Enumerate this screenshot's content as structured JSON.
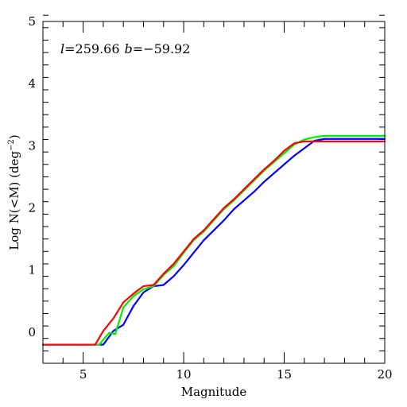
{
  "chart_data": {
    "type": "line",
    "title": "",
    "annotation": {
      "l_symbol": "l",
      "l_value": "=259.66",
      "b_symbol": "b",
      "b_value": "=−59.92"
    },
    "xlabel": "Magnitude",
    "ylabel_main": "Log N(<M) (deg",
    "ylabel_sup": "−2",
    "ylabel_close": ")",
    "xlim": [
      3,
      20
    ],
    "ylim": [
      -0.5,
      5
    ],
    "x_major_ticks": [
      5,
      10,
      15,
      20
    ],
    "x_tick_labels": [
      "5",
      "10",
      "15",
      "20"
    ],
    "x_minor_step": 1,
    "y_major_ticks": [
      0,
      1,
      2,
      3,
      4,
      5
    ],
    "y_tick_labels": [
      "0",
      "1",
      "2",
      "3",
      "4",
      "5"
    ],
    "y_minor_step": 0.2,
    "grid": false,
    "legend": "none",
    "series": [
      {
        "color": "#0000ff",
        "x": [
          3,
          6.0,
          6.5,
          7.0,
          7.5,
          8.0,
          8.5,
          9.0,
          9.5,
          10.0,
          10.5,
          11.0,
          11.5,
          12.0,
          12.5,
          13.0,
          13.5,
          14.0,
          14.5,
          15.0,
          15.5,
          16.0,
          16.5,
          17.0,
          20
        ],
        "y": [
          -0.2,
          -0.2,
          0.02,
          0.12,
          0.42,
          0.64,
          0.74,
          0.76,
          0.9,
          1.08,
          1.28,
          1.48,
          1.64,
          1.8,
          1.98,
          2.12,
          2.26,
          2.42,
          2.56,
          2.7,
          2.84,
          2.96,
          3.08,
          3.11,
          3.11
        ]
      },
      {
        "color": "#00ee00",
        "x": [
          3,
          5.8,
          6.0,
          6.3,
          6.6,
          7.0,
          7.5,
          8.0,
          8.5,
          9.0,
          9.5,
          10.0,
          10.5,
          11.0,
          11.5,
          12.0,
          12.5,
          13.0,
          13.5,
          14.0,
          14.5,
          15.0,
          15.5,
          16.0,
          16.5,
          17.0,
          20
        ],
        "y": [
          -0.2,
          -0.2,
          -0.12,
          -0.01,
          -0.03,
          0.4,
          0.58,
          0.69,
          0.74,
          0.92,
          1.06,
          1.28,
          1.48,
          1.62,
          1.8,
          1.98,
          2.12,
          2.28,
          2.44,
          2.6,
          2.74,
          2.88,
          3.02,
          3.1,
          3.14,
          3.16,
          3.16
        ]
      },
      {
        "color": "#ff0000",
        "x": [
          3,
          5.6,
          6.0,
          6.5,
          7.0,
          7.5,
          8.0,
          8.5,
          9.0,
          9.5,
          10.0,
          10.5,
          11.0,
          11.5,
          12.0,
          12.5,
          13.0,
          13.5,
          14.0,
          14.5,
          15.0,
          15.5,
          16.0,
          16.5,
          20
        ],
        "y": [
          -0.2,
          -0.2,
          0.02,
          0.22,
          0.48,
          0.62,
          0.74,
          0.76,
          0.94,
          1.1,
          1.3,
          1.5,
          1.64,
          1.82,
          2.0,
          2.14,
          2.3,
          2.46,
          2.62,
          2.76,
          2.92,
          3.04,
          3.07,
          3.07,
          3.07
        ]
      }
    ]
  }
}
